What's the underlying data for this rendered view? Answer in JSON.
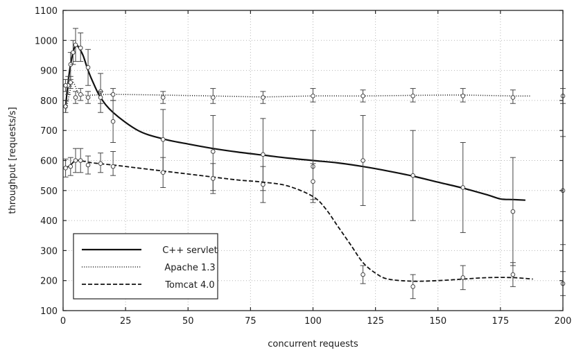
{
  "chart_data": {
    "type": "line",
    "xlabel": "concurrent requests",
    "ylabel": "throughput [requests/s]",
    "xlim": [
      0,
      200
    ],
    "ylim": [
      100,
      1100
    ],
    "xticks": [
      0,
      25,
      50,
      75,
      100,
      125,
      150,
      175,
      200
    ],
    "yticks": [
      100,
      200,
      300,
      400,
      500,
      600,
      700,
      800,
      900,
      1000,
      1100
    ],
    "grid": true,
    "legend_position": "bottom-left",
    "series": [
      {
        "name": "C++ servlet",
        "line_style": "solid",
        "curve": [
          [
            1,
            780
          ],
          [
            2,
            860
          ],
          [
            3,
            920
          ],
          [
            4,
            960
          ],
          [
            5,
            985
          ],
          [
            6,
            980
          ],
          [
            8,
            950
          ],
          [
            10,
            900
          ],
          [
            12,
            860
          ],
          [
            15,
            810
          ],
          [
            20,
            760
          ],
          [
            30,
            700
          ],
          [
            40,
            672
          ],
          [
            50,
            655
          ],
          [
            60,
            640
          ],
          [
            70,
            628
          ],
          [
            80,
            618
          ],
          [
            90,
            608
          ],
          [
            100,
            600
          ],
          [
            110,
            592
          ],
          [
            120,
            580
          ],
          [
            130,
            565
          ],
          [
            140,
            548
          ],
          [
            150,
            528
          ],
          [
            160,
            508
          ],
          [
            170,
            485
          ],
          [
            175,
            472
          ],
          [
            180,
            470
          ],
          [
            185,
            468
          ]
        ],
        "points": [
          {
            "x": 1,
            "y": 780,
            "low": 760,
            "high": 800
          },
          {
            "x": 2,
            "y": 850,
            "low": 820,
            "high": 880
          },
          {
            "x": 3,
            "y": 920,
            "low": 870,
            "high": 960
          },
          {
            "x": 4,
            "y": 960,
            "low": 920,
            "high": 1000
          },
          {
            "x": 5,
            "y": 985,
            "low": 930,
            "high": 1040
          },
          {
            "x": 7,
            "y": 975,
            "low": 930,
            "high": 1025
          },
          {
            "x": 10,
            "y": 910,
            "low": 850,
            "high": 970
          },
          {
            "x": 15,
            "y": 830,
            "low": 760,
            "high": 890
          },
          {
            "x": 20,
            "y": 730,
            "low": 660,
            "high": 800
          },
          {
            "x": 40,
            "y": 670,
            "low": 560,
            "high": 770
          },
          {
            "x": 60,
            "y": 630,
            "low": 500,
            "high": 750
          },
          {
            "x": 80,
            "y": 620,
            "low": 500,
            "high": 740
          },
          {
            "x": 100,
            "y": 580,
            "low": 460,
            "high": 700
          },
          {
            "x": 120,
            "y": 600,
            "low": 450,
            "high": 750
          },
          {
            "x": 140,
            "y": 550,
            "low": 400,
            "high": 700
          },
          {
            "x": 160,
            "y": 510,
            "low": 360,
            "high": 660
          },
          {
            "x": 180,
            "y": 430,
            "low": 250,
            "high": 610
          },
          {
            "x": 200,
            "y": 500,
            "low": 320,
            "high": 680
          }
        ]
      },
      {
        "name": "Apache 1.3",
        "line_style": "dotted",
        "curve": [
          [
            1,
            760
          ],
          [
            2,
            800
          ],
          [
            3,
            840
          ],
          [
            4,
            860
          ],
          [
            5,
            845
          ],
          [
            6,
            825
          ],
          [
            8,
            818
          ],
          [
            12,
            818
          ],
          [
            20,
            820
          ],
          [
            40,
            818
          ],
          [
            60,
            815
          ],
          [
            80,
            812
          ],
          [
            100,
            815
          ],
          [
            120,
            815
          ],
          [
            140,
            817
          ],
          [
            160,
            818
          ],
          [
            180,
            815
          ],
          [
            187,
            815
          ]
        ],
        "points": [
          {
            "x": 1,
            "y": 850,
            "low": 830,
            "high": 870
          },
          {
            "x": 3,
            "y": 860,
            "low": 840,
            "high": 880
          },
          {
            "x": 5,
            "y": 810,
            "low": 790,
            "high": 830
          },
          {
            "x": 7,
            "y": 820,
            "low": 800,
            "high": 840
          },
          {
            "x": 10,
            "y": 810,
            "low": 790,
            "high": 830
          },
          {
            "x": 15,
            "y": 810,
            "low": 790,
            "high": 830
          },
          {
            "x": 20,
            "y": 820,
            "low": 800,
            "high": 840
          },
          {
            "x": 40,
            "y": 810,
            "low": 790,
            "high": 830
          },
          {
            "x": 60,
            "y": 810,
            "low": 790,
            "high": 840
          },
          {
            "x": 80,
            "y": 810,
            "low": 790,
            "high": 830
          },
          {
            "x": 100,
            "y": 815,
            "low": 795,
            "high": 840
          },
          {
            "x": 120,
            "y": 815,
            "low": 795,
            "high": 835
          },
          {
            "x": 140,
            "y": 815,
            "low": 795,
            "high": 840
          },
          {
            "x": 160,
            "y": 815,
            "low": 795,
            "high": 840
          },
          {
            "x": 180,
            "y": 810,
            "low": 790,
            "high": 835
          },
          {
            "x": 200,
            "y": 815,
            "low": 790,
            "high": 840
          }
        ]
      },
      {
        "name": "Tomcat 4.0",
        "line_style": "dashed",
        "curve": [
          [
            1,
            575
          ],
          [
            3,
            585
          ],
          [
            5,
            600
          ],
          [
            8,
            598
          ],
          [
            12,
            592
          ],
          [
            20,
            585
          ],
          [
            30,
            575
          ],
          [
            40,
            565
          ],
          [
            50,
            555
          ],
          [
            60,
            545
          ],
          [
            70,
            535
          ],
          [
            80,
            528
          ],
          [
            90,
            515
          ],
          [
            100,
            480
          ],
          [
            105,
            440
          ],
          [
            110,
            380
          ],
          [
            115,
            320
          ],
          [
            120,
            260
          ],
          [
            125,
            225
          ],
          [
            130,
            205
          ],
          [
            140,
            198
          ],
          [
            150,
            200
          ],
          [
            160,
            205
          ],
          [
            170,
            210
          ],
          [
            180,
            210
          ],
          [
            188,
            205
          ]
        ],
        "points": [
          {
            "x": 1,
            "y": 575,
            "low": 545,
            "high": 605
          },
          {
            "x": 3,
            "y": 580,
            "low": 550,
            "high": 610
          },
          {
            "x": 5,
            "y": 600,
            "low": 560,
            "high": 640
          },
          {
            "x": 7,
            "y": 600,
            "low": 560,
            "high": 640
          },
          {
            "x": 10,
            "y": 585,
            "low": 555,
            "high": 615
          },
          {
            "x": 15,
            "y": 590,
            "low": 560,
            "high": 625
          },
          {
            "x": 20,
            "y": 580,
            "low": 550,
            "high": 630
          },
          {
            "x": 40,
            "y": 560,
            "low": 510,
            "high": 610
          },
          {
            "x": 60,
            "y": 540,
            "low": 490,
            "high": 590
          },
          {
            "x": 80,
            "y": 520,
            "low": 460,
            "high": 580
          },
          {
            "x": 100,
            "y": 530,
            "low": 470,
            "high": 590
          },
          {
            "x": 120,
            "y": 220,
            "low": 190,
            "high": 250
          },
          {
            "x": 140,
            "y": 180,
            "low": 140,
            "high": 220
          },
          {
            "x": 160,
            "y": 210,
            "low": 170,
            "high": 250
          },
          {
            "x": 180,
            "y": 220,
            "low": 180,
            "high": 260
          },
          {
            "x": 200,
            "y": 190,
            "low": 150,
            "high": 230
          }
        ]
      }
    ]
  }
}
